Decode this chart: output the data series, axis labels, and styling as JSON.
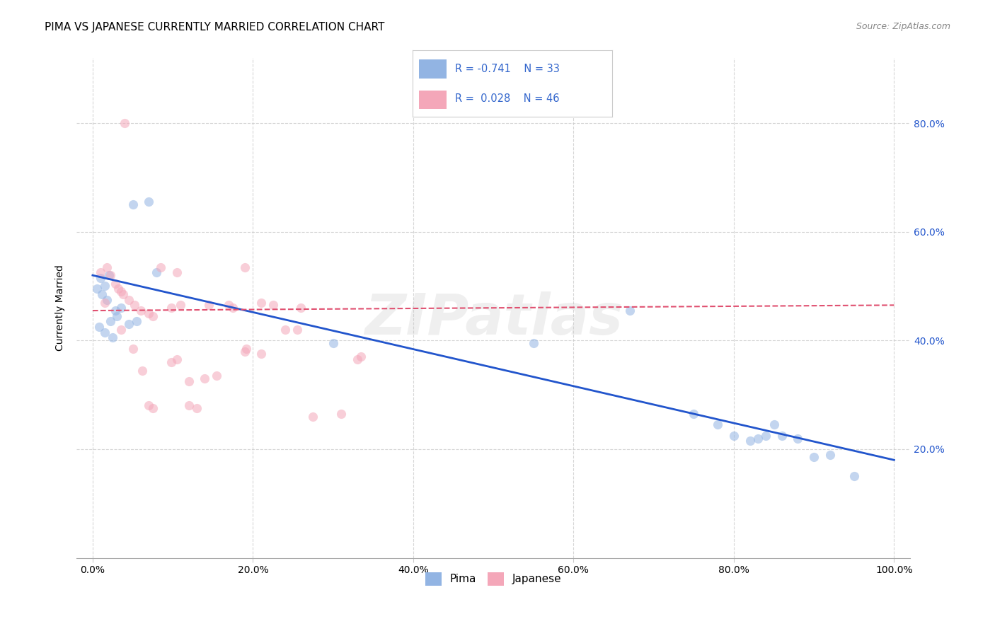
{
  "title": "PIMA VS JAPANESE CURRENTLY MARRIED CORRELATION CHART",
  "source": "Source: ZipAtlas.com",
  "ylabel": "Currently Married",
  "watermark": "ZIPatlas",
  "pima_R": -0.741,
  "pima_N": 33,
  "japanese_R": 0.028,
  "japanese_N": 46,
  "pima_color": "#92b4e3",
  "japanese_color": "#f4a7b9",
  "pima_line_color": "#2255cc",
  "japanese_line_color": "#e05070",
  "legend_text_color": "#3366cc",
  "pima_scatter": [
    [
      1.5,
      50.0
    ],
    [
      5.0,
      65.0
    ],
    [
      7.0,
      65.5
    ],
    [
      2.0,
      52.0
    ],
    [
      1.0,
      51.5
    ],
    [
      0.5,
      49.5
    ],
    [
      1.2,
      48.5
    ],
    [
      1.8,
      47.5
    ],
    [
      3.5,
      46.0
    ],
    [
      2.8,
      45.5
    ],
    [
      3.0,
      44.5
    ],
    [
      2.2,
      43.5
    ],
    [
      4.5,
      43.0
    ],
    [
      0.8,
      42.5
    ],
    [
      1.5,
      41.5
    ],
    [
      2.5,
      40.5
    ],
    [
      5.5,
      43.5
    ],
    [
      8.0,
      52.5
    ],
    [
      30.0,
      39.5
    ],
    [
      55.0,
      39.5
    ],
    [
      67.0,
      45.5
    ],
    [
      75.0,
      26.5
    ],
    [
      78.0,
      24.5
    ],
    [
      80.0,
      22.5
    ],
    [
      82.0,
      21.5
    ],
    [
      83.0,
      22.0
    ],
    [
      84.0,
      22.5
    ],
    [
      85.0,
      24.5
    ],
    [
      86.0,
      22.5
    ],
    [
      88.0,
      22.0
    ],
    [
      90.0,
      18.5
    ],
    [
      92.0,
      19.0
    ],
    [
      95.0,
      15.0
    ]
  ],
  "japanese_scatter": [
    [
      4.0,
      80.0
    ],
    [
      1.0,
      52.5
    ],
    [
      1.8,
      53.5
    ],
    [
      2.2,
      52.0
    ],
    [
      2.8,
      50.5
    ],
    [
      3.2,
      49.5
    ],
    [
      3.5,
      49.0
    ],
    [
      3.8,
      48.5
    ],
    [
      4.5,
      47.5
    ],
    [
      1.5,
      47.0
    ],
    [
      5.2,
      46.5
    ],
    [
      6.0,
      45.5
    ],
    [
      7.0,
      45.0
    ],
    [
      7.5,
      44.5
    ],
    [
      8.5,
      53.5
    ],
    [
      10.5,
      52.5
    ],
    [
      11.0,
      46.5
    ],
    [
      12.0,
      32.5
    ],
    [
      14.0,
      33.0
    ],
    [
      14.5,
      46.5
    ],
    [
      15.5,
      33.5
    ],
    [
      19.0,
      53.5
    ],
    [
      17.5,
      46.0
    ],
    [
      21.0,
      47.0
    ],
    [
      9.8,
      46.0
    ],
    [
      3.5,
      42.0
    ],
    [
      5.0,
      38.5
    ],
    [
      6.2,
      34.5
    ],
    [
      7.0,
      28.0
    ],
    [
      7.5,
      27.5
    ],
    [
      12.0,
      28.0
    ],
    [
      13.0,
      27.5
    ],
    [
      17.0,
      46.5
    ],
    [
      26.0,
      46.0
    ],
    [
      10.5,
      36.5
    ],
    [
      9.8,
      36.0
    ],
    [
      19.0,
      38.0
    ],
    [
      19.2,
      38.5
    ],
    [
      22.5,
      46.5
    ],
    [
      21.0,
      37.5
    ],
    [
      24.0,
      42.0
    ],
    [
      25.5,
      42.0
    ],
    [
      27.5,
      26.0
    ],
    [
      31.0,
      26.5
    ],
    [
      33.0,
      36.5
    ],
    [
      33.5,
      37.0
    ]
  ],
  "pima_trendline": [
    [
      0,
      52.0
    ],
    [
      100,
      18.0
    ]
  ],
  "japanese_trendline": [
    [
      0,
      45.5
    ],
    [
      100,
      46.5
    ]
  ],
  "xlim": [
    -2,
    102
  ],
  "ylim": [
    0,
    92
  ],
  "xticks": [
    0,
    20,
    40,
    60,
    80,
    100
  ],
  "xtick_labels": [
    "0.0%",
    "20.0%",
    "40.0%",
    "60.0%",
    "80.0%",
    "100.0%"
  ],
  "yticks": [
    20,
    40,
    60,
    80
  ],
  "ytick_labels": [
    "20.0%",
    "40.0%",
    "60.0%",
    "80.0%"
  ],
  "grid_color": "#cccccc",
  "background_color": "#ffffff",
  "title_fontsize": 11,
  "axis_label_fontsize": 10,
  "tick_fontsize": 10,
  "marker_size": 90,
  "marker_alpha": 0.55
}
